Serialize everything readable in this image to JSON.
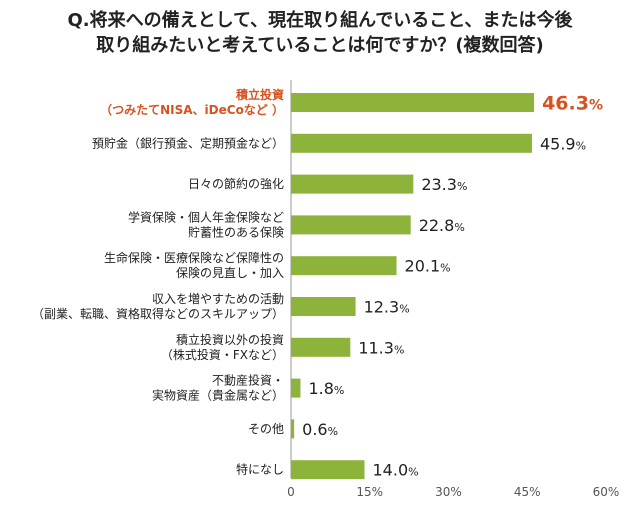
{
  "title_lines": [
    "Q.将来への備えとして、現在取り組んでいること、または今後",
    "取り組みたいと考えていることは何ですか？(複数回答)"
  ],
  "colors": {
    "bar": "#8db33a",
    "highlight": "#d8521f",
    "text": "#222222",
    "axis": "#999999",
    "grid": "#dddddd"
  },
  "chart_data": {
    "type": "bar",
    "orientation": "horizontal",
    "title": "Q.将来への備えとして、現在取り組んでいること、または今後取り組みたいと考えていることは何ですか？(複数回答)",
    "categories": [
      [
        "積立投資",
        "（つみたてNISA、iDeCoなど ）"
      ],
      [
        "預貯金（銀行預金、定期預金など）"
      ],
      [
        "日々の節約の強化"
      ],
      [
        "学資保険・個人年金保険など",
        "貯蓄性のある保険"
      ],
      [
        "生命保険・医療保険など保障性の",
        "保険の見直し・加入"
      ],
      [
        "収入を増やすための活動",
        "（副業、転職、資格取得などのスキルアップ）"
      ],
      [
        "積立投資以外の投資",
        "（株式投資・FXなど）"
      ],
      [
        "不動産投資・",
        "実物資産（貴金属など）"
      ],
      [
        "その他"
      ],
      [
        "特になし"
      ]
    ],
    "values": [
      46.3,
      45.9,
      23.3,
      22.8,
      20.1,
      12.3,
      11.3,
      1.8,
      0.6,
      14.0
    ],
    "value_labels": [
      "46.3",
      "45.9",
      "23.3",
      "22.8",
      "20.1",
      "12.3",
      "11.3",
      "1.8",
      "0.6",
      "14.0"
    ],
    "unit": "%",
    "highlight_index": 0,
    "x_ticks": [
      0,
      15,
      30,
      45,
      60
    ],
    "x_tick_labels": [
      "0",
      "15%",
      "30%",
      "45%",
      "60%"
    ],
    "xlim": [
      0,
      60
    ]
  }
}
